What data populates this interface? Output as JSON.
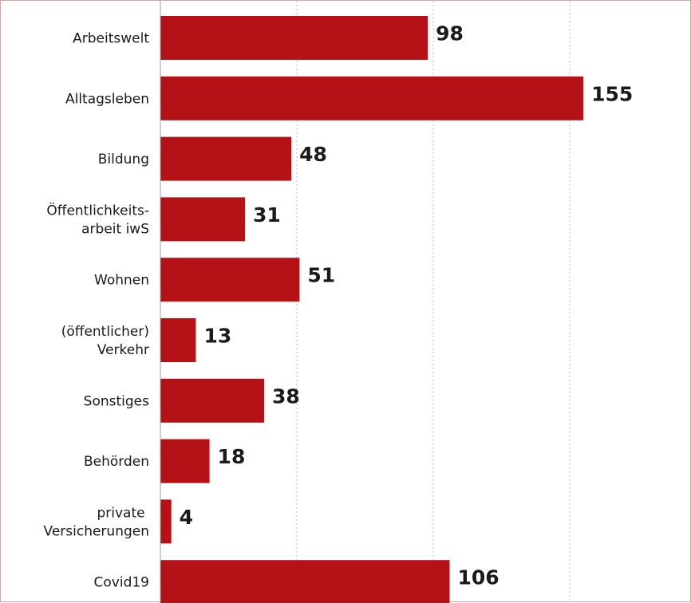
{
  "chart_data": {
    "type": "bar",
    "orientation": "horizontal",
    "categories": [
      [
        "Arbeitswelt"
      ],
      [
        "Alltagsleben"
      ],
      [
        "Bildung"
      ],
      [
        "Öffentlichkeits-",
        "arbeit iwS"
      ],
      [
        "Wohnen"
      ],
      [
        "(öffentlicher)",
        "Verkehr"
      ],
      [
        "Sonstiges"
      ],
      [
        "Behörden"
      ],
      [
        "private ",
        "Versicherungen"
      ],
      [
        "Covid19"
      ]
    ],
    "values": [
      98,
      155,
      48,
      31,
      51,
      13,
      38,
      18,
      4,
      106
    ],
    "xlim": [
      0,
      200
    ],
    "gridlines": [
      50,
      100,
      150,
      200
    ],
    "grid": true,
    "bar_color": "#b51217",
    "text_color": "#1a1a1a"
  }
}
